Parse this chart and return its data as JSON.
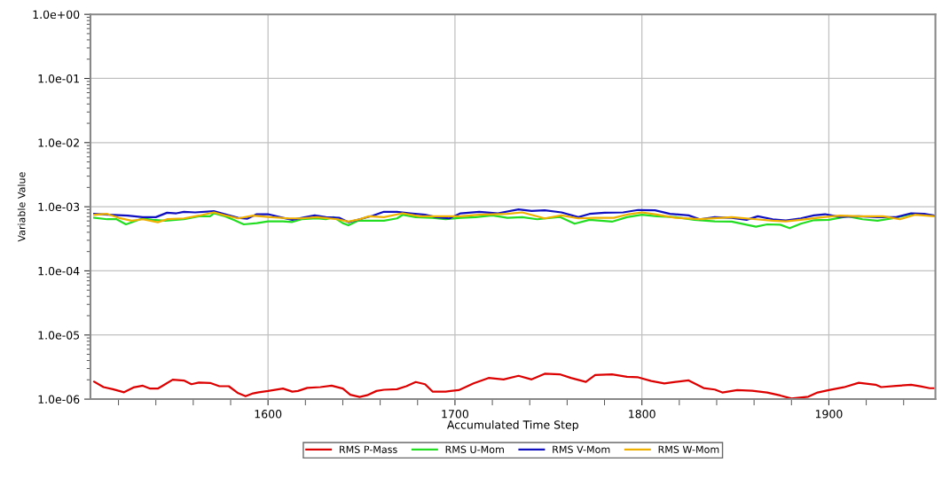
{
  "chart_data": {
    "type": "line",
    "xlabel": "Accumulated Time Step",
    "ylabel": "Variable Value",
    "log": "y",
    "grid": true,
    "legend": "bottom",
    "line_style": "solid",
    "marker": "none",
    "xlim": [
      1505,
      1957
    ],
    "xticks": [
      {
        "value": 1520,
        "label": null
      },
      {
        "value": 1540,
        "label": null
      },
      {
        "value": 1560,
        "label": null
      },
      {
        "value": 1580,
        "label": null
      },
      1600,
      {
        "value": 1620,
        "label": null
      },
      {
        "value": 1640,
        "label": null
      },
      {
        "value": 1660,
        "label": null
      },
      {
        "value": 1680,
        "label": null
      },
      1700,
      {
        "value": 1720,
        "label": null
      },
      {
        "value": 1740,
        "label": null
      },
      {
        "value": 1760,
        "label": null
      },
      {
        "value": 1780,
        "label": null
      },
      1800,
      {
        "value": 1820,
        "label": null
      },
      {
        "value": 1840,
        "label": null
      },
      {
        "value": 1860,
        "label": null
      },
      {
        "value": 1880,
        "label": null
      },
      1900,
      {
        "value": 1920,
        "label": null
      },
      {
        "value": 1940,
        "label": null
      }
    ],
    "ylim": [
      1e-06,
      1
    ],
    "yticks": [
      {
        "value": 1e-06,
        "label": "1.0e-06"
      },
      {
        "value": 1e-05,
        "label": "1.0e-05"
      },
      {
        "value": 0.0001,
        "label": "1.0e-04"
      },
      {
        "value": 0.001,
        "label": "1.0e-03"
      },
      {
        "value": 0.01,
        "label": "1.0e-02"
      },
      {
        "value": 0.1,
        "label": "1.0e-01"
      },
      {
        "value": 1,
        "label": "1.0e+00"
      }
    ],
    "series": [
      {
        "name": "RMS P-Mass",
        "color": "#dd0000",
        "x": [
          1507,
          1512,
          1517,
          1523,
          1528,
          1533,
          1537,
          1541,
          1545,
          1549,
          1555,
          1559,
          1563,
          1569,
          1574,
          1579,
          1584,
          1588,
          1592,
          1595,
          1600,
          1608,
          1613,
          1616,
          1621,
          1628,
          1634,
          1640,
          1644,
          1649,
          1653,
          1658,
          1662,
          1669,
          1674,
          1679,
          1684,
          1688,
          1695,
          1702,
          1710,
          1718,
          1726,
          1734,
          1741,
          1748,
          1756,
          1762,
          1770,
          1775,
          1784,
          1792,
          1798,
          1805,
          1812,
          1818,
          1825,
          1833,
          1839,
          1843,
          1851,
          1859,
          1867,
          1874,
          1880,
          1889,
          1894,
          1900,
          1908,
          1916,
          1925,
          1928,
          1936,
          1944,
          1949,
          1954,
          1956
        ],
        "values": [
          1.87e-06,
          1.54e-06,
          1.43e-06,
          1.28e-06,
          1.52e-06,
          1.62e-06,
          1.46e-06,
          1.46e-06,
          1.71e-06,
          2.01e-06,
          1.95e-06,
          1.71e-06,
          1.81e-06,
          1.79e-06,
          1.59e-06,
          1.59e-06,
          1.24e-06,
          1.11e-06,
          1.23e-06,
          1.28e-06,
          1.34e-06,
          1.46e-06,
          1.31e-06,
          1.34e-06,
          1.5e-06,
          1.54e-06,
          1.62e-06,
          1.46e-06,
          1.17e-06,
          1.08e-06,
          1.15e-06,
          1.34e-06,
          1.4e-06,
          1.43e-06,
          1.59e-06,
          1.85e-06,
          1.71e-06,
          1.31e-06,
          1.31e-06,
          1.38e-06,
          1.76e-06,
          2.14e-06,
          2.03e-06,
          2.31e-06,
          2.03e-06,
          2.49e-06,
          2.44e-06,
          2.14e-06,
          1.86e-06,
          2.38e-06,
          2.44e-06,
          2.23e-06,
          2.19e-06,
          1.92e-06,
          1.76e-06,
          1.86e-06,
          1.96e-06,
          1.49e-06,
          1.41e-06,
          1.27e-06,
          1.38e-06,
          1.35e-06,
          1.27e-06,
          1.14e-06,
          1.02e-06,
          1.09e-06,
          1.27e-06,
          1.38e-06,
          1.53e-06,
          1.8e-06,
          1.68e-06,
          1.54e-06,
          1.61e-06,
          1.67e-06,
          1.58e-06,
          1.48e-06,
          1.48e-06
        ]
      },
      {
        "name": "RMS U-Mom",
        "color": "#22dd22",
        "x": [
          1507,
          1514,
          1519,
          1524,
          1528,
          1533,
          1538,
          1545,
          1555,
          1563,
          1569,
          1571,
          1577,
          1582,
          1587,
          1594,
          1600,
          1608,
          1613,
          1618,
          1626,
          1631,
          1635,
          1640,
          1643,
          1648,
          1653,
          1662,
          1669,
          1672,
          1679,
          1688,
          1695,
          1703,
          1711,
          1720,
          1728,
          1736,
          1744,
          1756,
          1764,
          1772,
          1784,
          1792,
          1800,
          1808,
          1818,
          1828,
          1839,
          1848,
          1861,
          1867,
          1874,
          1879,
          1885,
          1892,
          1900,
          1910,
          1918,
          1926,
          1934,
          1944,
          1952,
          1956
        ],
        "values": [
          0.000673,
          0.000638,
          0.000638,
          0.000531,
          0.000585,
          0.000658,
          0.000624,
          0.000604,
          0.000638,
          0.00071,
          0.00071,
          0.00079,
          0.00071,
          0.000617,
          0.000531,
          0.000555,
          0.000591,
          0.000591,
          0.000579,
          0.000638,
          0.000658,
          0.000638,
          0.000688,
          0.000555,
          0.000514,
          0.000604,
          0.000604,
          0.000604,
          0.000658,
          0.000749,
          0.000688,
          0.000673,
          0.000638,
          0.000673,
          0.000688,
          0.000733,
          0.000673,
          0.000688,
          0.000638,
          0.000695,
          0.000543,
          0.000624,
          0.000585,
          0.000688,
          0.000749,
          0.00071,
          0.000688,
          0.000624,
          0.000591,
          0.000585,
          0.000488,
          0.000531,
          0.000525,
          0.000463,
          0.000543,
          0.000617,
          0.000624,
          0.00071,
          0.000638,
          0.000604,
          0.000658,
          0.000765,
          0.000749,
          0.000725
        ]
      },
      {
        "name": "RMS V-Mom",
        "color": "#1010c0",
        "x": [
          1507,
          1515,
          1525,
          1533,
          1540,
          1546,
          1551,
          1555,
          1561,
          1571,
          1577,
          1584,
          1589,
          1594,
          1600,
          1608,
          1613,
          1620,
          1625,
          1631,
          1638,
          1643,
          1649,
          1656,
          1662,
          1669,
          1676,
          1684,
          1690,
          1697,
          1703,
          1713,
          1723,
          1734,
          1741,
          1748,
          1757,
          1766,
          1772,
          1780,
          1790,
          1798,
          1807,
          1815,
          1825,
          1831,
          1839,
          1848,
          1856,
          1862,
          1870,
          1877,
          1885,
          1892,
          1898,
          1906,
          1916,
          1926,
          1936,
          1944,
          1951,
          1956
        ],
        "values": [
          0.000773,
          0.000749,
          0.000725,
          0.000688,
          0.000688,
          0.000807,
          0.00079,
          0.000834,
          0.000816,
          0.000852,
          0.000765,
          0.000673,
          0.000651,
          0.000765,
          0.000765,
          0.000673,
          0.000624,
          0.000688,
          0.000733,
          0.000688,
          0.000673,
          0.000573,
          0.000638,
          0.000725,
          0.000834,
          0.000834,
          0.00079,
          0.000749,
          0.000688,
          0.000658,
          0.00079,
          0.000834,
          0.00079,
          0.000908,
          0.00086,
          0.00088,
          0.000816,
          0.000688,
          0.000773,
          0.000807,
          0.000816,
          0.00089,
          0.00088,
          0.000773,
          0.000733,
          0.000638,
          0.000688,
          0.000673,
          0.000624,
          0.00071,
          0.000638,
          0.00061,
          0.000658,
          0.000733,
          0.000765,
          0.000695,
          0.00071,
          0.000688,
          0.000688,
          0.00079,
          0.000773,
          0.000733
        ]
      },
      {
        "name": "RMS W-Mom",
        "color": "#f0b000",
        "x": [
          1507,
          1514,
          1520,
          1527,
          1533,
          1541,
          1546,
          1555,
          1563,
          1571,
          1577,
          1584,
          1592,
          1600,
          1611,
          1618,
          1626,
          1637,
          1643,
          1649,
          1654,
          1662,
          1672,
          1681,
          1690,
          1703,
          1713,
          1728,
          1736,
          1748,
          1757,
          1766,
          1775,
          1785,
          1793,
          1800,
          1807,
          1818,
          1831,
          1848,
          1861,
          1870,
          1877,
          1885,
          1897,
          1906,
          1916,
          1929,
          1938,
          1946,
          1952,
          1956
        ],
        "values": [
          0.000749,
          0.000773,
          0.000673,
          0.000604,
          0.000638,
          0.000573,
          0.000638,
          0.000658,
          0.000725,
          0.000816,
          0.000733,
          0.000658,
          0.000725,
          0.000695,
          0.000658,
          0.000658,
          0.000688,
          0.000638,
          0.000585,
          0.000638,
          0.00071,
          0.000688,
          0.00079,
          0.00071,
          0.00071,
          0.00071,
          0.000749,
          0.000773,
          0.000816,
          0.000658,
          0.000733,
          0.000658,
          0.000673,
          0.000673,
          0.000765,
          0.000816,
          0.000765,
          0.000673,
          0.000638,
          0.000688,
          0.000638,
          0.000604,
          0.000591,
          0.000624,
          0.000688,
          0.000725,
          0.00071,
          0.00071,
          0.000638,
          0.000749,
          0.000725,
          0.00071
        ]
      }
    ]
  }
}
